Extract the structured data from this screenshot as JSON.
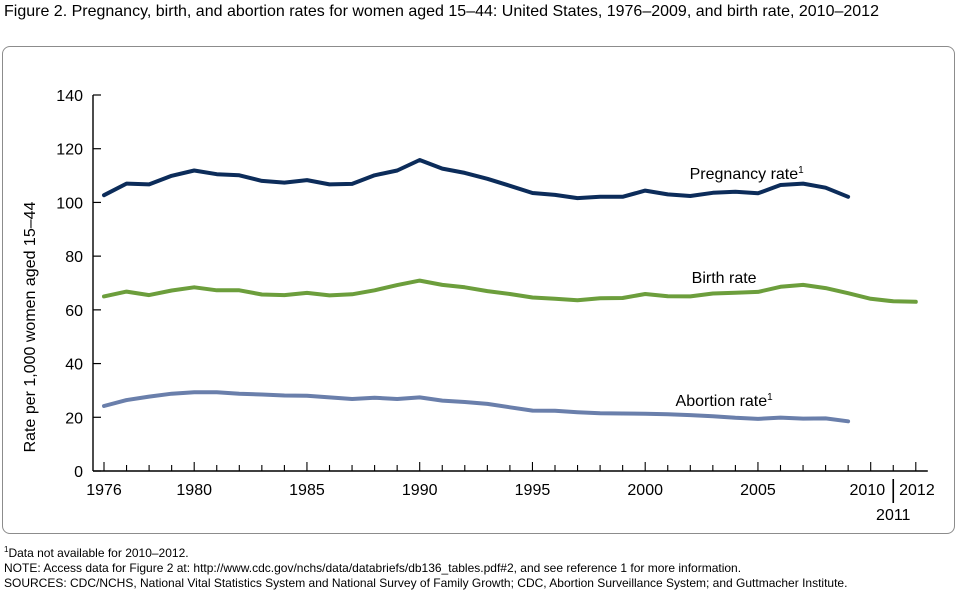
{
  "figure": {
    "title": "Figure 2. Pregnancy, birth, and abortion rates for women aged 15–44: United States, 1976–2009, and birth rate, 2010–2012"
  },
  "chart_data": {
    "type": "line",
    "ylabel": "Rate per 1,000 women aged 15–44",
    "xlabel": "",
    "ylim": [
      0,
      140
    ],
    "xlim": [
      1976,
      2012
    ],
    "y_ticks": [
      "0",
      "20",
      "40",
      "60",
      "80",
      "100",
      "120",
      "140"
    ],
    "x_tick_labels": [
      "1976",
      "1980",
      "1985",
      "1990",
      "1995",
      "2000",
      "2005",
      "2010",
      "2011",
      "2012"
    ],
    "grid": false,
    "series": [
      {
        "name": "Pregnancy rate",
        "name_sup": "1",
        "color": "#0c2c5a",
        "x": [
          1976,
          1977,
          1978,
          1979,
          1980,
          1981,
          1982,
          1983,
          1984,
          1985,
          1986,
          1987,
          1988,
          1989,
          1990,
          1991,
          1992,
          1993,
          1994,
          1995,
          1996,
          1997,
          1998,
          1999,
          2000,
          2001,
          2002,
          2003,
          2004,
          2005,
          2006,
          2007,
          2008,
          2009
        ],
        "values": [
          102.7,
          107.0,
          106.7,
          109.9,
          111.9,
          110.5,
          110.1,
          108.0,
          107.4,
          108.3,
          106.7,
          106.9,
          110.1,
          111.9,
          115.8,
          112.6,
          111.0,
          108.8,
          106.2,
          103.5,
          102.8,
          101.6,
          102.1,
          102.1,
          104.4,
          103.0,
          102.4,
          103.6,
          104.0,
          103.4,
          106.5,
          107.0,
          105.5,
          102.1
        ]
      },
      {
        "name": "Birth rate",
        "name_sup": "",
        "color": "#6c9e3c",
        "x": [
          1976,
          1977,
          1978,
          1979,
          1980,
          1981,
          1982,
          1983,
          1984,
          1985,
          1986,
          1987,
          1988,
          1989,
          1990,
          1991,
          1992,
          1993,
          1994,
          1995,
          1996,
          1997,
          1998,
          1999,
          2000,
          2001,
          2002,
          2003,
          2004,
          2005,
          2006,
          2007,
          2008,
          2009,
          2010,
          2011,
          2012
        ],
        "values": [
          65.0,
          66.8,
          65.5,
          67.2,
          68.4,
          67.3,
          67.3,
          65.7,
          65.5,
          66.3,
          65.4,
          65.8,
          67.3,
          69.2,
          70.9,
          69.3,
          68.4,
          67.0,
          65.9,
          64.6,
          64.1,
          63.6,
          64.3,
          64.4,
          65.9,
          65.1,
          65.0,
          66.1,
          66.4,
          66.7,
          68.6,
          69.3,
          68.1,
          66.2,
          64.1,
          63.2,
          63.0
        ]
      },
      {
        "name": "Abortion rate",
        "name_sup": "1",
        "color": "#6a7fab",
        "x": [
          1976,
          1977,
          1978,
          1979,
          1980,
          1981,
          1982,
          1983,
          1984,
          1985,
          1986,
          1987,
          1988,
          1989,
          1990,
          1991,
          1992,
          1993,
          1994,
          1995,
          1996,
          1997,
          1998,
          1999,
          2000,
          2001,
          2002,
          2003,
          2004,
          2005,
          2006,
          2007,
          2008,
          2009
        ],
        "values": [
          24.2,
          26.4,
          27.7,
          28.8,
          29.3,
          29.3,
          28.8,
          28.5,
          28.1,
          28.0,
          27.4,
          26.8,
          27.3,
          26.8,
          27.4,
          26.2,
          25.7,
          25.0,
          23.7,
          22.5,
          22.4,
          21.9,
          21.5,
          21.4,
          21.3,
          21.1,
          20.8,
          20.4,
          19.8,
          19.4,
          19.9,
          19.5,
          19.6,
          18.5
        ]
      }
    ]
  },
  "footnotes": {
    "note1_sup": "1",
    "note1": "Data not available for 2010–2012.",
    "note2": "NOTE: Access data for Figure 2 at: http://www.cdc.gov/nchs/data/databriefs/db136_tables.pdf#2, and see reference 1 for more information.",
    "sources": "SOURCES: CDC/NCHS, National Vital Statistics System and National Survey of Family Growth; CDC, Abortion Surveillance System; and Guttmacher Institute."
  }
}
